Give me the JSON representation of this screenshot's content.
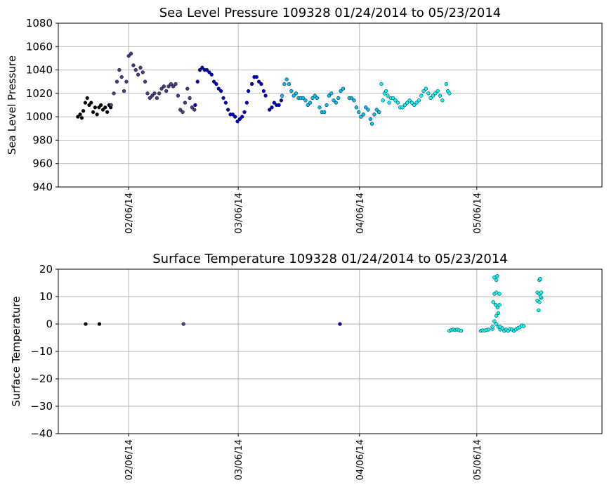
{
  "chart_data": [
    {
      "type": "scatter",
      "title": "Sea Level Pressure 109328  01/24/2014 to 05/23/2014",
      "xlabel": "",
      "ylabel": "Sea Level Pressure",
      "ylim": [
        940,
        1080
      ],
      "yticks": [
        940,
        960,
        980,
        1000,
        1020,
        1040,
        1060,
        1080
      ],
      "xlim_days": [
        -5.0,
        134.0
      ],
      "xticks": [
        {
          "day": 13,
          "label": "02/06/14"
        },
        {
          "day": 41,
          "label": "03/06/14"
        },
        {
          "day": 72,
          "label": "04/06/14"
        },
        {
          "day": 102,
          "label": "05/06/14"
        }
      ],
      "x_origin": "2014-01-24",
      "grid": true,
      "colors": [
        "#000000",
        "#483d8b",
        "#0000cd",
        "#00bfff",
        "#00ffff"
      ],
      "series": [
        {
          "name": "segment-1",
          "color": "#000000",
          "points": [
            [
              0,
              1000
            ],
            [
              0.6,
              1002
            ],
            [
              1.0,
              999
            ],
            [
              1.4,
              1005
            ],
            [
              1.9,
              1012
            ],
            [
              2.4,
              1016
            ],
            [
              2.9,
              1010
            ],
            [
              3.4,
              1012
            ],
            [
              3.9,
              1004
            ],
            [
              4.4,
              1008
            ],
            [
              4.9,
              1002
            ],
            [
              5.4,
              1008
            ],
            [
              5.9,
              1010
            ],
            [
              6.4,
              1006
            ],
            [
              7.0,
              1008
            ],
            [
              7.5,
              1004
            ],
            [
              8.0,
              1010
            ],
            [
              8.4,
              1008
            ]
          ]
        },
        {
          "name": "segment-2",
          "color": "#483d8b",
          "points": [
            [
              8.5,
              1010
            ],
            [
              9.2,
              1020
            ],
            [
              10.0,
              1030
            ],
            [
              10.6,
              1040
            ],
            [
              11.2,
              1034
            ],
            [
              11.8,
              1022
            ],
            [
              12.4,
              1030
            ],
            [
              13.0,
              1052
            ],
            [
              13.6,
              1054
            ],
            [
              14.2,
              1044
            ],
            [
              14.8,
              1040
            ],
            [
              15.4,
              1036
            ],
            [
              16.0,
              1042
            ],
            [
              16.6,
              1038
            ],
            [
              17.2,
              1030
            ],
            [
              17.8,
              1020
            ],
            [
              18.4,
              1016
            ],
            [
              19.0,
              1018
            ],
            [
              19.6,
              1020
            ],
            [
              20.2,
              1016
            ],
            [
              20.8,
              1020
            ],
            [
              21.4,
              1024
            ],
            [
              22.0,
              1026
            ],
            [
              22.6,
              1022
            ],
            [
              23.2,
              1026
            ],
            [
              23.8,
              1028
            ],
            [
              24.4,
              1026
            ],
            [
              25.0,
              1028
            ],
            [
              25.6,
              1018
            ],
            [
              26.2,
              1006
            ],
            [
              26.8,
              1004
            ],
            [
              27.4,
              1012
            ],
            [
              28.0,
              1024
            ],
            [
              28.6,
              1016
            ],
            [
              29.2,
              1008
            ],
            [
              29.8,
              1006
            ]
          ]
        },
        {
          "name": "segment-3",
          "color": "#0000cd",
          "points": [
            [
              30.0,
              1010
            ],
            [
              30.6,
              1030
            ],
            [
              31.2,
              1040
            ],
            [
              31.8,
              1042
            ],
            [
              32.4,
              1040
            ],
            [
              33.0,
              1040
            ],
            [
              33.6,
              1038
            ],
            [
              34.2,
              1036
            ],
            [
              34.8,
              1030
            ],
            [
              35.4,
              1028
            ],
            [
              36.0,
              1024
            ],
            [
              36.6,
              1022
            ],
            [
              37.2,
              1016
            ],
            [
              37.8,
              1012
            ],
            [
              38.4,
              1006
            ],
            [
              39.0,
              1002
            ],
            [
              39.6,
              1002
            ],
            [
              40.2,
              1000
            ],
            [
              40.8,
              996
            ],
            [
              41.4,
              998
            ],
            [
              42.0,
              1000
            ],
            [
              42.6,
              1004
            ],
            [
              43.2,
              1012
            ],
            [
              43.6,
              1022
            ],
            [
              44.5,
              1028
            ],
            [
              45.1,
              1034
            ],
            [
              45.7,
              1034
            ],
            [
              46.3,
              1030
            ],
            [
              46.9,
              1028
            ],
            [
              47.5,
              1022
            ],
            [
              48.0,
              1018
            ],
            [
              49.0,
              1006
            ],
            [
              49.6,
              1008
            ],
            [
              50.2,
              1012
            ],
            [
              50.8,
              1010
            ],
            [
              51.4,
              1010
            ],
            [
              52.0,
              1014
            ]
          ]
        },
        {
          "name": "segment-4",
          "color": "#00bfff",
          "points": [
            [
              52.2,
              1018
            ],
            [
              52.8,
              1028
            ],
            [
              53.4,
              1032
            ],
            [
              54.0,
              1028
            ],
            [
              54.6,
              1022
            ],
            [
              55.2,
              1018
            ],
            [
              55.8,
              1020
            ],
            [
              56.4,
              1016
            ],
            [
              57.0,
              1016
            ],
            [
              57.6,
              1016
            ],
            [
              58.2,
              1014
            ],
            [
              58.8,
              1010
            ],
            [
              59.4,
              1012
            ],
            [
              60.0,
              1016
            ],
            [
              60.6,
              1018
            ],
            [
              61.2,
              1016
            ],
            [
              61.8,
              1008
            ],
            [
              62.4,
              1004
            ],
            [
              63.0,
              1004
            ],
            [
              63.6,
              1010
            ],
            [
              64.2,
              1018
            ],
            [
              64.8,
              1020
            ],
            [
              65.4,
              1014
            ],
            [
              66.0,
              1012
            ],
            [
              66.6,
              1016
            ],
            [
              67.2,
              1022
            ],
            [
              67.8,
              1024
            ],
            [
              69.4,
              1016
            ],
            [
              70.0,
              1016
            ],
            [
              70.6,
              1014
            ],
            [
              71.2,
              1008
            ],
            [
              71.8,
              1004
            ],
            [
              72.4,
              1000
            ],
            [
              73.0,
              1002
            ],
            [
              73.6,
              1008
            ],
            [
              74.2,
              1006
            ],
            [
              74.8,
              998
            ],
            [
              75.2,
              994
            ],
            [
              75.8,
              1002
            ],
            [
              76.4,
              1006
            ],
            [
              77.0,
              1004
            ]
          ]
        },
        {
          "name": "segment-5",
          "color": "#00ffff",
          "points": [
            [
              77.6,
              1028
            ],
            [
              78.0,
              1014
            ],
            [
              78.4,
              1020
            ],
            [
              78.8,
              1022
            ],
            [
              79.2,
              1018
            ],
            [
              79.6,
              1012
            ],
            [
              80.0,
              1016
            ],
            [
              80.6,
              1016
            ],
            [
              81.2,
              1014
            ],
            [
              81.8,
              1012
            ],
            [
              82.4,
              1008
            ],
            [
              83.0,
              1008
            ],
            [
              83.6,
              1010
            ],
            [
              84.2,
              1012
            ],
            [
              84.8,
              1014
            ],
            [
              85.4,
              1012
            ],
            [
              86.0,
              1010
            ],
            [
              86.6,
              1012
            ],
            [
              87.2,
              1014
            ],
            [
              87.8,
              1018
            ],
            [
              88.4,
              1022
            ],
            [
              89.0,
              1024
            ],
            [
              89.6,
              1020
            ],
            [
              90.2,
              1016
            ],
            [
              90.8,
              1018
            ],
            [
              91.4,
              1020
            ],
            [
              92.0,
              1022
            ],
            [
              92.6,
              1018
            ],
            [
              93.2,
              1014
            ],
            [
              94.2,
              1028
            ],
            [
              94.6,
              1022
            ],
            [
              95.0,
              1020
            ]
          ]
        }
      ]
    },
    {
      "type": "scatter",
      "title": "Surface Temperature 109328  01/24/2014 to 05/23/2014",
      "xlabel": "",
      "ylabel": "Surface Temperature",
      "ylim": [
        -40,
        20
      ],
      "yticks": [
        -40,
        -30,
        -20,
        -10,
        0,
        10,
        20
      ],
      "ytick_labels": [
        "−40",
        "−30",
        "−20",
        "−10",
        "0",
        "10",
        "20"
      ],
      "xlim_days": [
        -5.0,
        134.0
      ],
      "xticks": [
        {
          "day": 13,
          "label": "02/06/14"
        },
        {
          "day": 41,
          "label": "03/06/14"
        },
        {
          "day": 72,
          "label": "04/06/14"
        },
        {
          "day": 102,
          "label": "05/06/14"
        }
      ],
      "x_origin": "2014-01-24",
      "grid": true,
      "series": [
        {
          "name": "segment-1",
          "color": "#000000",
          "points": [
            [
              2,
              0
            ],
            [
              5.5,
              0
            ]
          ]
        },
        {
          "name": "segment-2",
          "color": "#483d8b",
          "points": [
            [
              27,
              0
            ]
          ]
        },
        {
          "name": "segment-3",
          "color": "#0000cd",
          "points": [
            [
              67,
              0
            ]
          ]
        },
        {
          "name": "segment-4",
          "color": "#00bfff",
          "points": []
        },
        {
          "name": "segment-5",
          "color": "#00ffff",
          "points": [
            [
              95,
              -2.5
            ],
            [
              95.5,
              -2.2
            ],
            [
              96,
              -2.0
            ],
            [
              96.5,
              -2.2
            ],
            [
              97,
              -2.0
            ],
            [
              97.5,
              -2.3
            ],
            [
              98,
              -2.5
            ],
            [
              103,
              -2.5
            ],
            [
              103.5,
              -2.3
            ],
            [
              104,
              -2.4
            ],
            [
              104.5,
              -2.2
            ],
            [
              105,
              -2.0
            ],
            [
              106,
              -1.8
            ],
            [
              106,
              -1.0
            ],
            [
              106.5,
              17
            ],
            [
              107,
              16
            ],
            [
              107.2,
              17.5
            ],
            [
              106.5,
              11
            ],
            [
              107,
              11.5
            ],
            [
              106.2,
              8
            ],
            [
              106.8,
              7
            ],
            [
              107.3,
              6
            ],
            [
              107,
              3
            ],
            [
              106.5,
              1
            ],
            [
              107,
              0
            ],
            [
              107.5,
              -1
            ],
            [
              108,
              -2
            ],
            [
              108.5,
              -1.5
            ],
            [
              109,
              -2.5
            ],
            [
              109.5,
              -2
            ],
            [
              110,
              -2.5
            ],
            [
              110.5,
              -1.8
            ],
            [
              111,
              -2.0
            ],
            [
              111.5,
              -2.5
            ],
            [
              112,
              -2
            ],
            [
              112.5,
              -1.5
            ],
            [
              113,
              -1.2
            ],
            [
              113.5,
              -0.5
            ],
            [
              114,
              -0.8
            ],
            [
              107.8,
              11
            ],
            [
              107.8,
              7
            ],
            [
              107.5,
              4
            ],
            [
              108,
              -1
            ],
            [
              118,
              16
            ],
            [
              118.2,
              16.5
            ],
            [
              117.5,
              11.5
            ],
            [
              118,
              11
            ],
            [
              118.5,
              11.5
            ],
            [
              117.5,
              8.5
            ],
            [
              118,
              8
            ],
            [
              118.5,
              9.5
            ],
            [
              118.3,
              10
            ],
            [
              117.8,
              5
            ]
          ]
        }
      ]
    }
  ]
}
